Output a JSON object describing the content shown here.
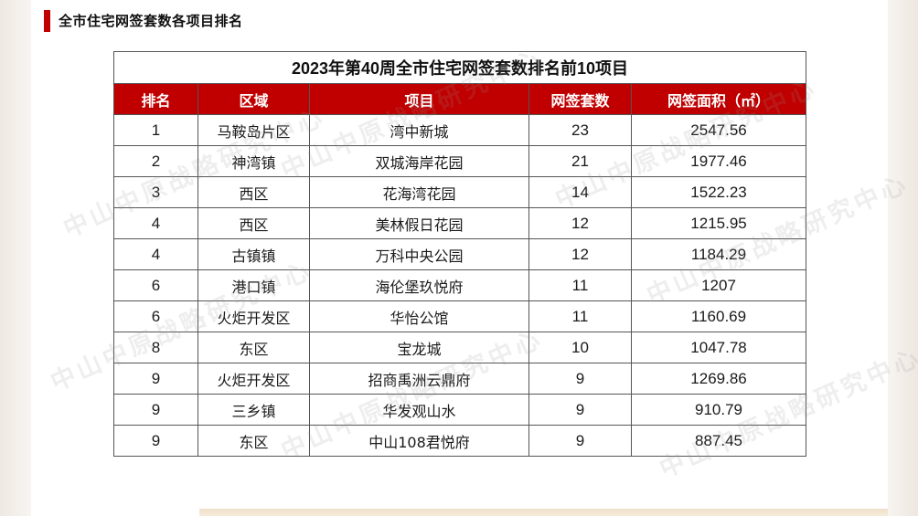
{
  "section_title": "全市住宅网签套数各项目排名",
  "table": {
    "caption": "2023年第40周全市住宅网签套数排名前10项目",
    "headers": [
      "排名",
      "区域",
      "项目",
      "网签套数",
      "网签面积（㎡）"
    ],
    "rows": [
      [
        "1",
        "马鞍岛片区",
        "湾中新城",
        "23",
        "2547.56"
      ],
      [
        "2",
        "神湾镇",
        "双城海岸花园",
        "21",
        "1977.46"
      ],
      [
        "3",
        "西区",
        "花海湾花园",
        "14",
        "1522.23"
      ],
      [
        "4",
        "西区",
        "美林假日花园",
        "12",
        "1215.95"
      ],
      [
        "4",
        "古镇镇",
        "万科中央公园",
        "12",
        "1184.29"
      ],
      [
        "6",
        "港口镇",
        "海伦堡玖悦府",
        "11",
        "1207"
      ],
      [
        "6",
        "火炬开发区",
        "华怡公馆",
        "11",
        "1160.69"
      ],
      [
        "8",
        "东区",
        "宝龙城",
        "10",
        "1047.78"
      ],
      [
        "9",
        "火炬开发区",
        "招商禹洲云鼎府",
        "9",
        "1269.86"
      ],
      [
        "9",
        "三乡镇",
        "华发观山水",
        "9",
        "910.79"
      ],
      [
        "9",
        "东区",
        "中山108君悦府",
        "9",
        "887.45"
      ]
    ]
  },
  "watermark_text": "中山中原战略研究中心",
  "colors": {
    "accent": "#c00000",
    "header_text": "#ffffff"
  }
}
